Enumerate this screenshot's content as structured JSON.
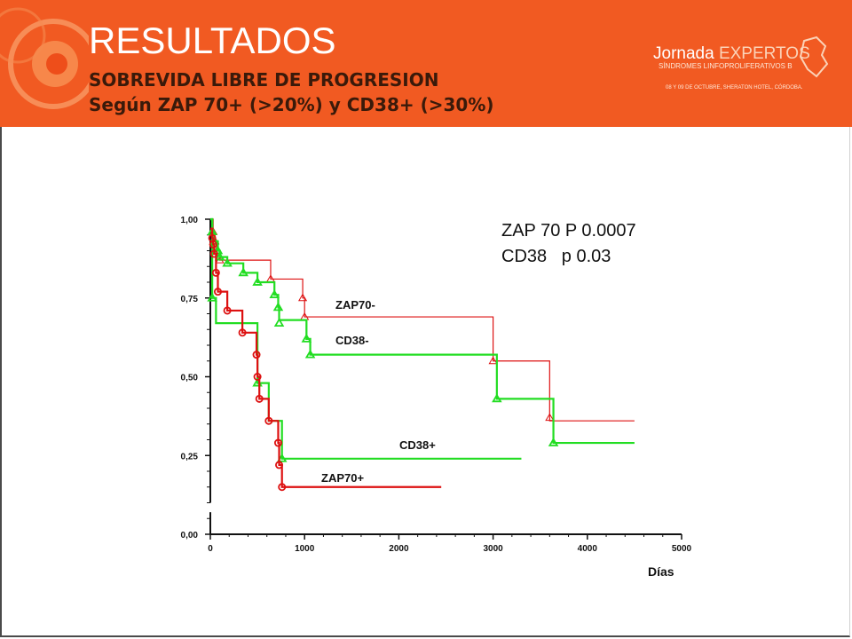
{
  "header": {
    "title": "RESULTADOS",
    "subtitle1": "SOBREVIDA LIBRE DE PROGRESION",
    "subtitle2": "Según ZAP 70+ (>20%) y CD38+ (>30%)"
  },
  "logo": {
    "word1": "Jornada ",
    "word2": "EXPERTOS",
    "subtitle": "SÍNDROMES LINFOPROLIFERATIVOS B",
    "date": "08 Y 09 DE OCTUBRE, SHERATON HOTEL, CÓRDOBA."
  },
  "colors": {
    "header_bg": "#f15a22",
    "green": "#22dd22",
    "red": "#dd1111"
  },
  "chart_data": {
    "type": "line",
    "subtype": "kaplan-meier step curves",
    "xlabel": "Días",
    "ylabel": "",
    "xlim": [
      0,
      5000
    ],
    "ylim": [
      0,
      1
    ],
    "xticks": [
      "0",
      "1000",
      "2000",
      "3000",
      "4000",
      "5000"
    ],
    "yticks": [
      "0,00",
      "0,25",
      "0,50",
      "0,75",
      "1,00"
    ],
    "annotations": [
      "ZAP 70 P 0.0007",
      "CD38   p 0.03"
    ],
    "series": [
      {
        "name": "ZAP70-",
        "color": "#dd1111",
        "marker": "triangle",
        "steps": [
          [
            0,
            1.0
          ],
          [
            30,
            0.96
          ],
          [
            50,
            0.93
          ],
          [
            70,
            0.9
          ],
          [
            100,
            0.87
          ],
          [
            640,
            0.81
          ],
          [
            980,
            0.75
          ],
          [
            1000,
            0.69
          ],
          [
            3000,
            0.55
          ],
          [
            3600,
            0.36
          ],
          [
            4500,
            0.36
          ]
        ],
        "markers": [
          [
            30,
            0.96
          ],
          [
            50,
            0.93
          ],
          [
            70,
            0.9
          ],
          [
            100,
            0.87
          ],
          [
            640,
            0.81
          ],
          [
            980,
            0.75
          ],
          [
            1000,
            0.69
          ],
          [
            3000,
            0.55
          ],
          [
            3600,
            0.37
          ]
        ]
      },
      {
        "name": "CD38-",
        "color": "#22dd22",
        "marker": "triangle",
        "steps": [
          [
            0,
            1.0
          ],
          [
            20,
            0.96
          ],
          [
            40,
            0.93
          ],
          [
            80,
            0.9
          ],
          [
            100,
            0.88
          ],
          [
            180,
            0.86
          ],
          [
            350,
            0.83
          ],
          [
            500,
            0.8
          ],
          [
            680,
            0.76
          ],
          [
            720,
            0.72
          ],
          [
            730,
            0.68
          ],
          [
            1020,
            0.62
          ],
          [
            1060,
            0.57
          ],
          [
            3040,
            0.43
          ],
          [
            3640,
            0.29
          ],
          [
            4500,
            0.29
          ]
        ],
        "markers": [
          [
            20,
            0.96
          ],
          [
            40,
            0.93
          ],
          [
            80,
            0.9
          ],
          [
            100,
            0.88
          ],
          [
            180,
            0.86
          ],
          [
            350,
            0.83
          ],
          [
            500,
            0.8
          ],
          [
            680,
            0.76
          ],
          [
            720,
            0.72
          ],
          [
            730,
            0.67
          ],
          [
            1020,
            0.62
          ],
          [
            1060,
            0.57
          ],
          [
            3040,
            0.43
          ],
          [
            3640,
            0.29
          ]
        ]
      },
      {
        "name": "CD38+",
        "color": "#22dd22",
        "marker": "triangle",
        "steps": [
          [
            0,
            1.0
          ],
          [
            20,
            0.75
          ],
          [
            60,
            0.67
          ],
          [
            500,
            0.48
          ],
          [
            620,
            0.36
          ],
          [
            760,
            0.24
          ],
          [
            3300,
            0.24
          ]
        ],
        "markers": [
          [
            20,
            0.75
          ],
          [
            500,
            0.48
          ],
          [
            760,
            0.24
          ]
        ]
      },
      {
        "name": "ZAP70+",
        "color": "#dd1111",
        "marker": "circle",
        "steps": [
          [
            0,
            0.97
          ],
          [
            20,
            0.94
          ],
          [
            30,
            0.92
          ],
          [
            40,
            0.89
          ],
          [
            60,
            0.83
          ],
          [
            80,
            0.77
          ],
          [
            180,
            0.71
          ],
          [
            340,
            0.64
          ],
          [
            490,
            0.57
          ],
          [
            500,
            0.5
          ],
          [
            520,
            0.43
          ],
          [
            620,
            0.36
          ],
          [
            720,
            0.29
          ],
          [
            730,
            0.22
          ],
          [
            760,
            0.15
          ],
          [
            2450,
            0.15
          ]
        ],
        "markers": [
          [
            20,
            0.94
          ],
          [
            30,
            0.92
          ],
          [
            40,
            0.89
          ],
          [
            60,
            0.83
          ],
          [
            80,
            0.77
          ],
          [
            180,
            0.71
          ],
          [
            340,
            0.64
          ],
          [
            490,
            0.57
          ],
          [
            500,
            0.5
          ],
          [
            520,
            0.43
          ],
          [
            620,
            0.36
          ],
          [
            720,
            0.29
          ],
          [
            730,
            0.22
          ],
          [
            760,
            0.15
          ]
        ]
      }
    ]
  }
}
